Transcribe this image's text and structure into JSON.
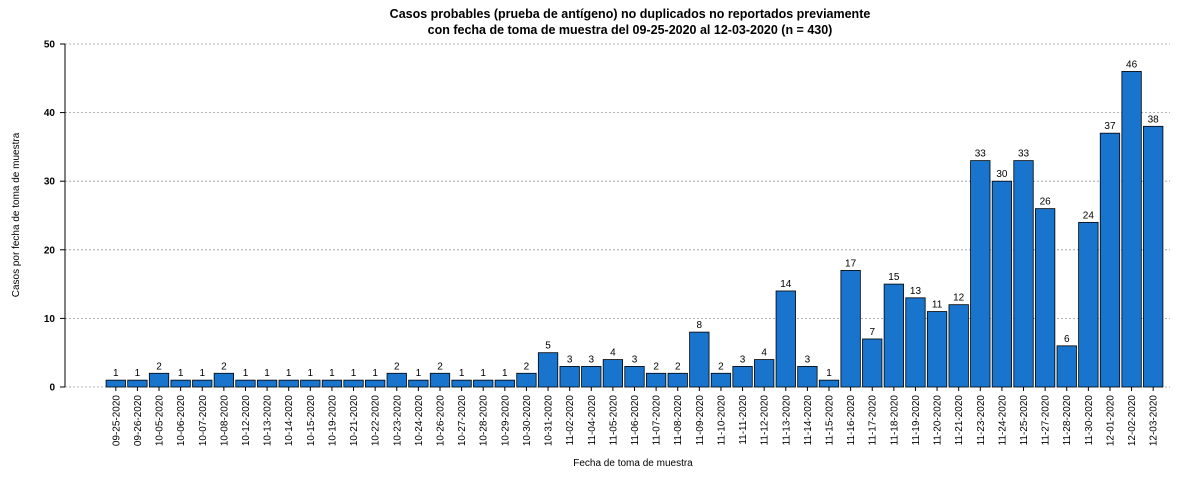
{
  "chart_data": {
    "type": "bar",
    "title": [
      "Casos probables (prueba de antígeno) no duplicados no reportados previamente",
      "con fecha de toma de muestra del 09-25-2020 al 12-03-2020 (n = 430)"
    ],
    "x_label": "Fecha de toma de muestra",
    "y_label": "Casos por fecha de toma de muestra",
    "categories": [
      "09-25-2020",
      "09-26-2020",
      "10-05-2020",
      "10-06-2020",
      "10-07-2020",
      "10-08-2020",
      "10-12-2020",
      "10-13-2020",
      "10-14-2020",
      "10-15-2020",
      "10-19-2020",
      "10-21-2020",
      "10-22-2020",
      "10-23-2020",
      "10-24-2020",
      "10-26-2020",
      "10-27-2020",
      "10-28-2020",
      "10-29-2020",
      "10-30-2020",
      "10-31-2020",
      "11-02-2020",
      "11-04-2020",
      "11-05-2020",
      "11-06-2020",
      "11-07-2020",
      "11-08-2020",
      "11-09-2020",
      "11-10-2020",
      "11-11-2020",
      "11-12-2020",
      "11-13-2020",
      "11-14-2020",
      "11-15-2020",
      "11-16-2020",
      "11-17-2020",
      "11-18-2020",
      "11-19-2020",
      "11-20-2020",
      "11-21-2020",
      "11-23-2020",
      "11-24-2020",
      "11-25-2020",
      "11-27-2020",
      "11-28-2020",
      "11-30-2020",
      "12-01-2020",
      "12-02-2020",
      "12-03-2020"
    ],
    "values": [
      1,
      1,
      2,
      1,
      1,
      2,
      1,
      1,
      1,
      1,
      1,
      1,
      1,
      2,
      1,
      2,
      1,
      1,
      1,
      2,
      5,
      3,
      3,
      4,
      3,
      2,
      2,
      8,
      2,
      3,
      4,
      14,
      3,
      1,
      17,
      7,
      15,
      13,
      11,
      12,
      33,
      30,
      33,
      26,
      6,
      24,
      37,
      46,
      38
    ],
    "color": "#1874cd",
    "ylim": [
      0,
      50
    ],
    "yticks": [
      0,
      10,
      20,
      30,
      40,
      50
    ],
    "grid": true
  }
}
